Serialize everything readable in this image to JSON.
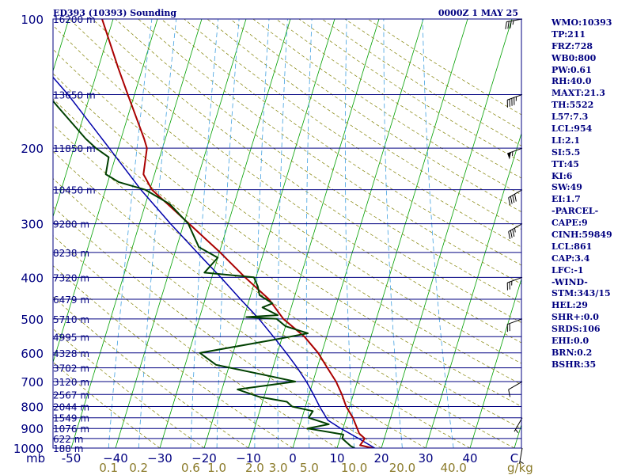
{
  "header": {
    "station": "ED393 (10393) Sounding",
    "datetime": "0000Z  1 MAY 25"
  },
  "colors": {
    "frame": "#000080",
    "isobar": "#000080",
    "isotherm": "#00a000",
    "mixing": "#40a0e0",
    "dryadiabat": "#808000",
    "temperature": "#aa0000",
    "dewpoint": "#004000",
    "parcel": "#0000aa"
  },
  "chart_data": {
    "type": "skew-t",
    "pressure_unit": "mb",
    "mixing_unit": "g/kg",
    "isobars": [
      {
        "p": 100,
        "label": "100",
        "height": "16200 m"
      },
      {
        "p": 150,
        "label": "",
        "height": "13650 m"
      },
      {
        "p": 200,
        "label": "200",
        "height": "11850 m"
      },
      {
        "p": 250,
        "label": "",
        "height": "10450 m"
      },
      {
        "p": 300,
        "label": "300",
        "height": "9280 m"
      },
      {
        "p": 350,
        "label": "",
        "height": "8238 m"
      },
      {
        "p": 400,
        "label": "400",
        "height": "7320 m"
      },
      {
        "p": 450,
        "label": "",
        "height": "6479 m"
      },
      {
        "p": 500,
        "label": "500",
        "height": "5710 m"
      },
      {
        "p": 550,
        "label": "",
        "height": "4995 m"
      },
      {
        "p": 600,
        "label": "600",
        "height": "4328 m"
      },
      {
        "p": 650,
        "label": "",
        "height": "3702 m"
      },
      {
        "p": 700,
        "label": "700",
        "height": "3120 m"
      },
      {
        "p": 750,
        "label": "",
        "height": "2567 m"
      },
      {
        "p": 800,
        "label": "800",
        "height": "2044 m"
      },
      {
        "p": 850,
        "label": "",
        "height": "1549 m"
      },
      {
        "p": 900,
        "label": "900",
        "height": "1076 m"
      },
      {
        "p": 950,
        "label": "",
        "height": "622 m"
      },
      {
        "p": 1000,
        "label": "1000",
        "height": "188 m"
      }
    ],
    "temperature_ticks": [
      {
        "t": -50,
        "label": "-50"
      },
      {
        "t": -40,
        "label": "−40"
      },
      {
        "t": -30,
        "label": "−30"
      },
      {
        "t": -20,
        "label": "−20"
      },
      {
        "t": -10,
        "label": "−10"
      },
      {
        "t": 0,
        "label": "0"
      },
      {
        "t": 10,
        "label": "10"
      },
      {
        "t": 20,
        "label": "20"
      },
      {
        "t": 30,
        "label": "30"
      },
      {
        "t": 40,
        "label": "40"
      },
      {
        "t": 50,
        "label": "C"
      }
    ],
    "mixing_ratio_labels": [
      "0.1",
      "0.2",
      "0.6",
      "1.0",
      "2.0",
      "3.0",
      "5.0",
      "10.0",
      "20.0",
      "40.0"
    ],
    "mixing_ratios": [
      0.1,
      0.2,
      0.6,
      1.0,
      2.0,
      3.0,
      5.0,
      10.0,
      20.0,
      40.0
    ],
    "temperature": [
      [
        1000,
        18.0
      ],
      [
        985,
        15.0
      ],
      [
        950,
        15.6
      ],
      [
        925,
        14.0
      ],
      [
        900,
        13.2
      ],
      [
        850,
        11.5
      ],
      [
        800,
        9.2
      ],
      [
        750,
        7.4
      ],
      [
        700,
        5.2
      ],
      [
        650,
        2.3
      ],
      [
        600,
        -0.8
      ],
      [
        550,
        -5.0
      ],
      [
        500,
        -11.0
      ],
      [
        450,
        -15.6
      ],
      [
        400,
        -22.5
      ],
      [
        350,
        -29.8
      ],
      [
        300,
        -38.8
      ],
      [
        250,
        -49.5
      ],
      [
        230,
        -52.5
      ],
      [
        200,
        -53.5
      ],
      [
        190,
        -54.8
      ],
      [
        150,
        -61.5
      ],
      [
        130,
        -65.5
      ],
      [
        100,
        -72.5
      ]
    ],
    "dewpoint": [
      [
        1000,
        14.0
      ],
      [
        990,
        13.0
      ],
      [
        950,
        10.5
      ],
      [
        930,
        10.5
      ],
      [
        900,
        2.0
      ],
      [
        880,
        6.5
      ],
      [
        850,
        1.5
      ],
      [
        820,
        2.0
      ],
      [
        800,
        -3.0
      ],
      [
        780,
        -4.5
      ],
      [
        760,
        -11.0
      ],
      [
        730,
        -16.5
      ],
      [
        700,
        -4.0
      ],
      [
        680,
        -10.0
      ],
      [
        640,
        -23.0
      ],
      [
        600,
        -27.5
      ],
      [
        560,
        -12.0
      ],
      [
        540,
        -4.5
      ],
      [
        520,
        -10.0
      ],
      [
        500,
        -12.5
      ],
      [
        495,
        -19.5
      ],
      [
        490,
        -12.5
      ],
      [
        470,
        -16.5
      ],
      [
        460,
        -14.5
      ],
      [
        440,
        -18.0
      ],
      [
        420,
        -19.0
      ],
      [
        400,
        -20.5
      ],
      [
        390,
        -32.0
      ],
      [
        360,
        -30.0
      ],
      [
        340,
        -35.0
      ],
      [
        300,
        -39.0
      ],
      [
        270,
        -44.5
      ],
      [
        250,
        -51.0
      ],
      [
        240,
        -57.5
      ],
      [
        230,
        -61.0
      ],
      [
        210,
        -61.5
      ],
      [
        200,
        -65.0
      ],
      [
        190,
        -68.0
      ],
      [
        160,
        -76.5
      ],
      [
        130,
        -86.5
      ],
      [
        100,
        -101.0
      ]
    ],
    "parcel": [
      [
        1000,
        18.5
      ],
      [
        950,
        14.2
      ],
      [
        900,
        9.5
      ],
      [
        861,
        6.0
      ],
      [
        800,
        3.2
      ],
      [
        750,
        1.0
      ],
      [
        700,
        -1.5
      ],
      [
        650,
        -4.5
      ],
      [
        600,
        -8.0
      ],
      [
        550,
        -12.0
      ],
      [
        500,
        -16.5
      ],
      [
        450,
        -22.0
      ],
      [
        400,
        -28.0
      ],
      [
        350,
        -35.0
      ],
      [
        300,
        -43.0
      ],
      [
        250,
        -52.0
      ],
      [
        200,
        -62.0
      ],
      [
        150,
        -75.0
      ],
      [
        100,
        -95.0
      ]
    ],
    "winds": [
      {
        "p": 1000,
        "dir": 190,
        "spd": 5
      },
      {
        "p": 850,
        "dir": 210,
        "spd": 5
      },
      {
        "p": 700,
        "dir": 240,
        "spd": 10
      },
      {
        "p": 500,
        "dir": 250,
        "spd": 20
      },
      {
        "p": 400,
        "dir": 250,
        "spd": 25
      },
      {
        "p": 300,
        "dir": 240,
        "spd": 35
      },
      {
        "p": 250,
        "dir": 240,
        "spd": 40
      },
      {
        "p": 200,
        "dir": 250,
        "spd": 55
      },
      {
        "p": 150,
        "dir": 250,
        "spd": 45
      },
      {
        "p": 100,
        "dir": 260,
        "spd": 35
      }
    ]
  },
  "indices": [
    "WMO:10393",
    "TP:211",
    "FRZ:728",
    "WB0:800",
    "PW:0.61",
    "RH:40.0",
    "MAXT:21.3",
    "TH:5522",
    "L57:7.3",
    "LCL:954",
    "LI:2.1",
    "SI:5.5",
    "TT:45",
    "KI:6",
    "SW:49",
    "EI:1.7",
    "-PARCEL-",
    "CAPE:9",
    "CINH:59849",
    "LCL:861",
    "CAP:3.4",
    "LFC:-1",
    "-WIND-",
    "STM:343/15",
    "HEL:29",
    "SHR+:0.0",
    "SRDS:106",
    "EHI:0.0",
    "BRN:0.2",
    "BSHR:35"
  ]
}
